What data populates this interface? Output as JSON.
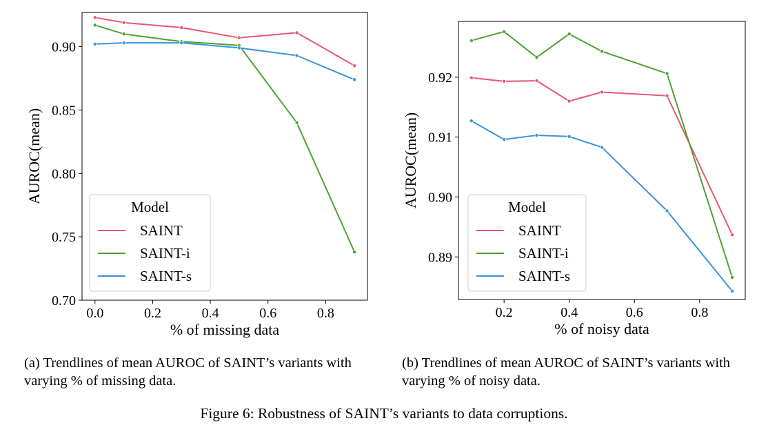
{
  "chart_data": [
    {
      "type": "line",
      "xlabel": "% of missing data",
      "ylabel": "AUROC(mean)",
      "xlim": [
        -0.045,
        0.945
      ],
      "ylim": [
        0.7,
        0.927
      ],
      "xticks": [
        0.0,
        0.2,
        0.4,
        0.6,
        0.8
      ],
      "xtick_labels": [
        "0.0",
        "0.2",
        "0.4",
        "0.6",
        "0.8"
      ],
      "yticks": [
        0.7,
        0.75,
        0.8,
        0.85,
        0.9
      ],
      "ytick_labels": [
        "0.70",
        "0.75",
        "0.80",
        "0.85",
        "0.90"
      ],
      "grid": false,
      "legend": {
        "title": "Model",
        "placement": "lower-left"
      },
      "x": [
        0.0,
        0.1,
        0.3,
        0.5,
        0.7,
        0.9
      ],
      "series": [
        {
          "name": "SAINT",
          "color": "#e8566e",
          "values": [
            0.923,
            0.919,
            0.915,
            0.907,
            0.911,
            0.885
          ]
        },
        {
          "name": "SAINT-i",
          "color": "#4ca22e",
          "values": [
            0.917,
            0.91,
            0.904,
            0.901,
            0.84,
            0.738
          ]
        },
        {
          "name": "SAINT-s",
          "color": "#3a93e0",
          "values": [
            0.902,
            0.903,
            0.903,
            0.899,
            0.893,
            0.874
          ]
        }
      ]
    },
    {
      "type": "line",
      "xlabel": "% of noisy data",
      "ylabel": "AUROC(mean)",
      "xlim": [
        0.06,
        0.94
      ],
      "ylim": [
        0.8829,
        0.9293
      ],
      "xticks": [
        0.2,
        0.4,
        0.6,
        0.8
      ],
      "xtick_labels": [
        "0.2",
        "0.4",
        "0.6",
        "0.8"
      ],
      "yticks": [
        0.89,
        0.9,
        0.91,
        0.92
      ],
      "ytick_labels": [
        "0.89",
        "0.90",
        "0.91",
        "0.92"
      ],
      "grid": false,
      "legend": {
        "title": "Model",
        "placement": "lower-left"
      },
      "x": [
        0.1,
        0.2,
        0.3,
        0.4,
        0.5,
        0.7,
        0.9
      ],
      "series": [
        {
          "name": "SAINT",
          "color": "#e8566e",
          "values": [
            0.9199,
            0.9193,
            0.9194,
            0.916,
            0.9175,
            0.9169,
            0.8937
          ]
        },
        {
          "name": "SAINT-i",
          "color": "#4ca22e",
          "values": [
            0.9261,
            0.9276,
            0.9233,
            0.9272,
            0.9243,
            0.9206,
            0.8866
          ]
        },
        {
          "name": "SAINT-s",
          "color": "#3a93e0",
          "values": [
            0.9127,
            0.9096,
            0.9103,
            0.9101,
            0.9083,
            0.8977,
            0.8843
          ]
        }
      ]
    }
  ],
  "captions": {
    "a": "(a) Trendlines of mean AUROC of SAINT’s variants with varying % of missing data.",
    "b": "(b) Trendlines of mean AUROC of SAINT’s variants with varying % of noisy data.",
    "figure": "Figure 6: Robustness of SAINT’s variants to data corruptions."
  }
}
